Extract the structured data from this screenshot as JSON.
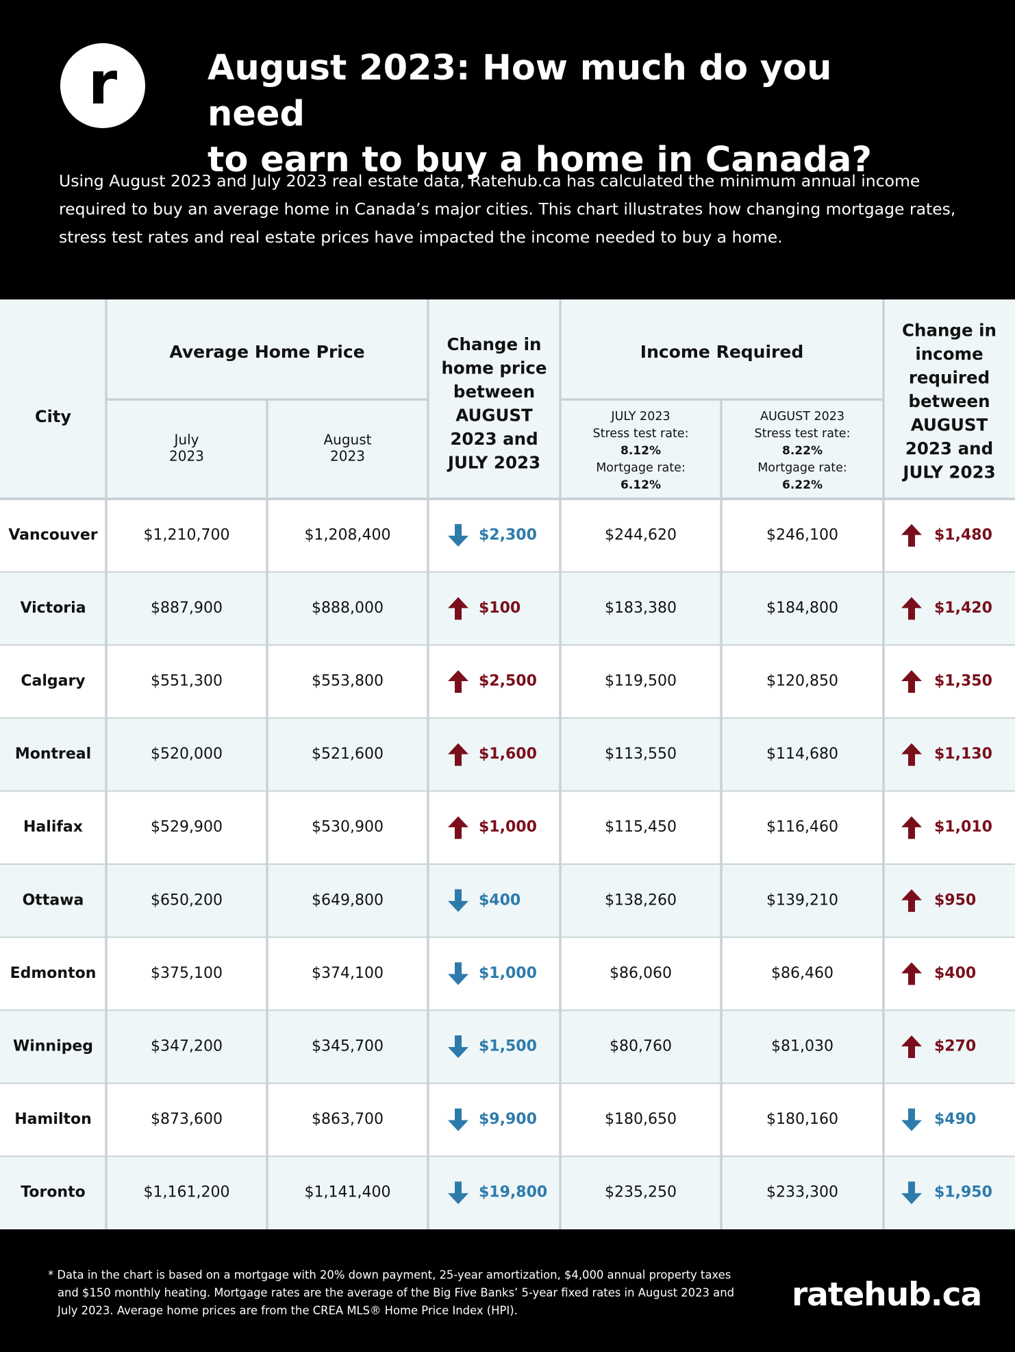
{
  "header": {
    "logo_letter": "r",
    "title_line1": "August 2023: How much do you need",
    "title_line2": "to earn to buy a home in Canada?",
    "intro": "Using August 2023 and July 2023 real estate data, Ratehub.ca has calculated the minimum annual income required to buy an average home in Canada’s major cities. This chart illustrates how changing mortgage rates, stress test rates and real estate prices have impacted the income needed to buy a home."
  },
  "colors": {
    "up": "#7a0f1b",
    "down": "#2e7bab",
    "shade": "#eef6f8",
    "grid": "#c9d2d6"
  },
  "chart_data": {
    "type": "table",
    "columns": {
      "city": "City",
      "avg_price_group": "Average Home Price",
      "price_july": [
        "July",
        "2023"
      ],
      "price_august": [
        "August",
        "2023"
      ],
      "price_change": [
        "Change in",
        "home price",
        "between",
        "AUGUST",
        "2023 and",
        "JULY 2023"
      ],
      "income_group": "Income Required",
      "income_july": [
        "JULY 2023",
        "Stress test rate:",
        "8.12%",
        "Mortgage rate:",
        "6.12%"
      ],
      "income_august": [
        "AUGUST 2023",
        "Stress test rate:",
        "8.22%",
        "Mortgage rate:",
        "6.22%"
      ],
      "income_change": [
        "Change in",
        "income",
        "required",
        "between",
        "AUGUST",
        "2023 and",
        "JULY 2023"
      ]
    },
    "rows": [
      {
        "city": "Vancouver",
        "price_july": "$1,210,700",
        "price_august": "$1,208,400",
        "price_change": "$2,300",
        "price_dir": "down",
        "income_july": "$244,620",
        "income_august": "$246,100",
        "income_change": "$1,480",
        "income_dir": "up"
      },
      {
        "city": "Victoria",
        "price_july": "$887,900",
        "price_august": "$888,000",
        "price_change": "$100",
        "price_dir": "up",
        "income_july": "$183,380",
        "income_august": "$184,800",
        "income_change": "$1,420",
        "income_dir": "up"
      },
      {
        "city": "Calgary",
        "price_july": "$551,300",
        "price_august": "$553,800",
        "price_change": "$2,500",
        "price_dir": "up",
        "income_july": "$119,500",
        "income_august": "$120,850",
        "income_change": "$1,350",
        "income_dir": "up"
      },
      {
        "city": "Montreal",
        "price_july": "$520,000",
        "price_august": "$521,600",
        "price_change": "$1,600",
        "price_dir": "up",
        "income_july": "$113,550",
        "income_august": "$114,680",
        "income_change": "$1,130",
        "income_dir": "up"
      },
      {
        "city": "Halifax",
        "price_july": "$529,900",
        "price_august": "$530,900",
        "price_change": "$1,000",
        "price_dir": "up",
        "income_july": "$115,450",
        "income_august": "$116,460",
        "income_change": "$1,010",
        "income_dir": "up"
      },
      {
        "city": "Ottawa",
        "price_july": "$650,200",
        "price_august": "$649,800",
        "price_change": "$400",
        "price_dir": "down",
        "income_july": "$138,260",
        "income_august": "$139,210",
        "income_change": "$950",
        "income_dir": "up"
      },
      {
        "city": "Edmonton",
        "price_july": "$375,100",
        "price_august": "$374,100",
        "price_change": "$1,000",
        "price_dir": "down",
        "income_july": "$86,060",
        "income_august": "$86,460",
        "income_change": "$400",
        "income_dir": "up"
      },
      {
        "city": "Winnipeg",
        "price_july": "$347,200",
        "price_august": "$345,700",
        "price_change": "$1,500",
        "price_dir": "down",
        "income_july": "$80,760",
        "income_august": "$81,030",
        "income_change": "$270",
        "income_dir": "up"
      },
      {
        "city": "Hamilton",
        "price_july": "$873,600",
        "price_august": "$863,700",
        "price_change": "$9,900",
        "price_dir": "down",
        "income_july": "$180,650",
        "income_august": "$180,160",
        "income_change": "$490",
        "income_dir": "down"
      },
      {
        "city": "Toronto",
        "price_july": "$1,161,200",
        "price_august": "$1,141,400",
        "price_change": "$19,800",
        "price_dir": "down",
        "income_july": "$235,250",
        "income_august": "$233,300",
        "income_change": "$1,950",
        "income_dir": "down"
      }
    ]
  },
  "footer": {
    "note_line1": "* Data in the chart is based on a mortgage with 20% down payment, 25-year amortization, $4,000 annual property taxes",
    "note_line2": "and $150 monthly heating. Mortgage rates are the average of the Big Five Banks’ 5-year fixed rates in August 2023 and",
    "note_line3": "July 2023.  Average home prices are from the CREA MLS® Home Price Index (HPI).",
    "brand": "ratehub.ca"
  }
}
